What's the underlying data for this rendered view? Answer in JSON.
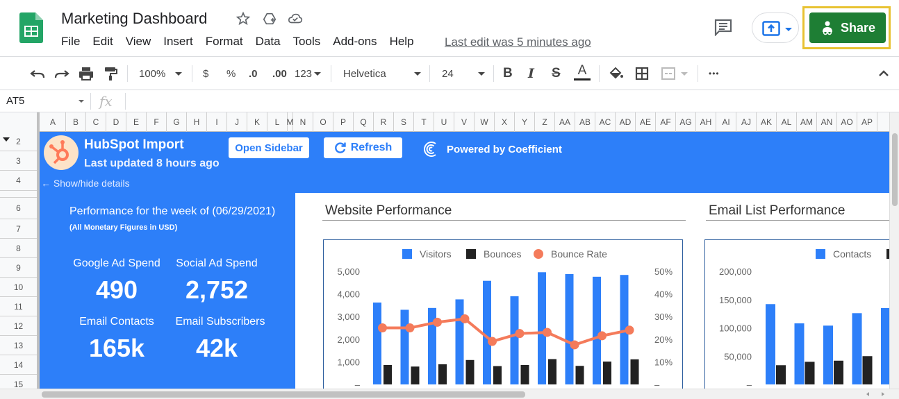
{
  "title_bar": {
    "doc_title": "Marketing Dashboard",
    "last_edit": "Last edit was 5 minutes ago",
    "share_label": "Share"
  },
  "menu": [
    "File",
    "Edit",
    "View",
    "Insert",
    "Format",
    "Data",
    "Tools",
    "Add-ons",
    "Help"
  ],
  "toolbar": {
    "zoom": "100%",
    "currency": "$",
    "percent": "%",
    "dec_decrease": ".0",
    "dec_increase": ".00",
    "more_formats": "123",
    "font": "Helvetica",
    "font_size": "24",
    "bold": "B",
    "italic": "I",
    "strike": "S",
    "text_color": "A",
    "more": "•••"
  },
  "formula_bar": {
    "name_box": "AT5",
    "fx": "fx"
  },
  "columns": [
    "A",
    "B",
    "C",
    "D",
    "E",
    "F",
    "G",
    "H",
    "I",
    "J",
    "K",
    "L",
    "M",
    "N",
    "O",
    "P",
    "Q",
    "R",
    "S",
    "T",
    "U",
    "V",
    "W",
    "X",
    "Y",
    "Z",
    "AA",
    "AB",
    "AC",
    "AD",
    "AE",
    "AF",
    "AG",
    "AH",
    "AI",
    "AJ",
    "AK",
    "AL",
    "AM",
    "AN",
    "AO",
    "AP"
  ],
  "rows": [
    "2",
    "3",
    "4",
    "5",
    "6",
    "7",
    "8",
    "9",
    "10",
    "11",
    "12",
    "13",
    "14",
    "15"
  ],
  "banner": {
    "title": "HubSpot Import",
    "updated": "Last updated 8 hours ago",
    "open_sidebar": "Open Sidebar",
    "refresh": "Refresh",
    "powered_by": "Powered by Coefficient",
    "show_hide": "← Show/hide details"
  },
  "kpis": {
    "week": "Performance for the week of (06/29/2021)",
    "note": "(All Monetary Figures in USD)",
    "google_label": "Google Ad Spend",
    "google_value": "490",
    "social_label": "Social Ad Spend",
    "social_value": "2,752",
    "contacts_label": "Email Contacts",
    "contacts_value": "165k",
    "subs_label": "Email Subscribers",
    "subs_value": "42k"
  },
  "colors": {
    "blue": "#2d7ff9",
    "black": "#222222",
    "orange": "#f47b5b",
    "share_green": "#1e7e34",
    "highlight_yellow": "#e8c232"
  },
  "chart_data": [
    {
      "type": "bar",
      "title": "Website Performance",
      "series": [
        {
          "name": "Visitors",
          "values": [
            3620,
            3300,
            3380,
            3760,
            4580,
            3900,
            4960,
            4880,
            4760,
            4840
          ]
        },
        {
          "name": "Bounces",
          "values": [
            860,
            790,
            890,
            1080,
            810,
            860,
            1120,
            820,
            1010,
            1110
          ]
        },
        {
          "name": "Bounce Rate",
          "type": "line",
          "axis": "right",
          "values": [
            25,
            25,
            27.5,
            29,
            19,
            22.5,
            23,
            17.5,
            21.5,
            24
          ]
        }
      ],
      "ylim": [
        0,
        5000
      ],
      "y_ticks": [
        "5,000",
        "4,000",
        "3,000",
        "2,000",
        "1,000",
        "–"
      ],
      "y2lim": [
        0,
        50
      ],
      "y2_ticks": [
        "50%",
        "40%",
        "30%",
        "20%",
        "10%",
        "–"
      ],
      "legend": "top"
    },
    {
      "type": "bar",
      "title": "Email List Performance",
      "series": [
        {
          "name": "Contacts",
          "values": [
            142000,
            108000,
            104000,
            126000,
            135000
          ]
        },
        {
          "name": "",
          "values": [
            34000,
            40000,
            42000,
            50000,
            36000
          ]
        }
      ],
      "ylim": [
        0,
        200000
      ],
      "y_ticks": [
        "200,000",
        "150,000",
        "100,000",
        "50,000",
        "–"
      ],
      "legend": "top"
    }
  ]
}
